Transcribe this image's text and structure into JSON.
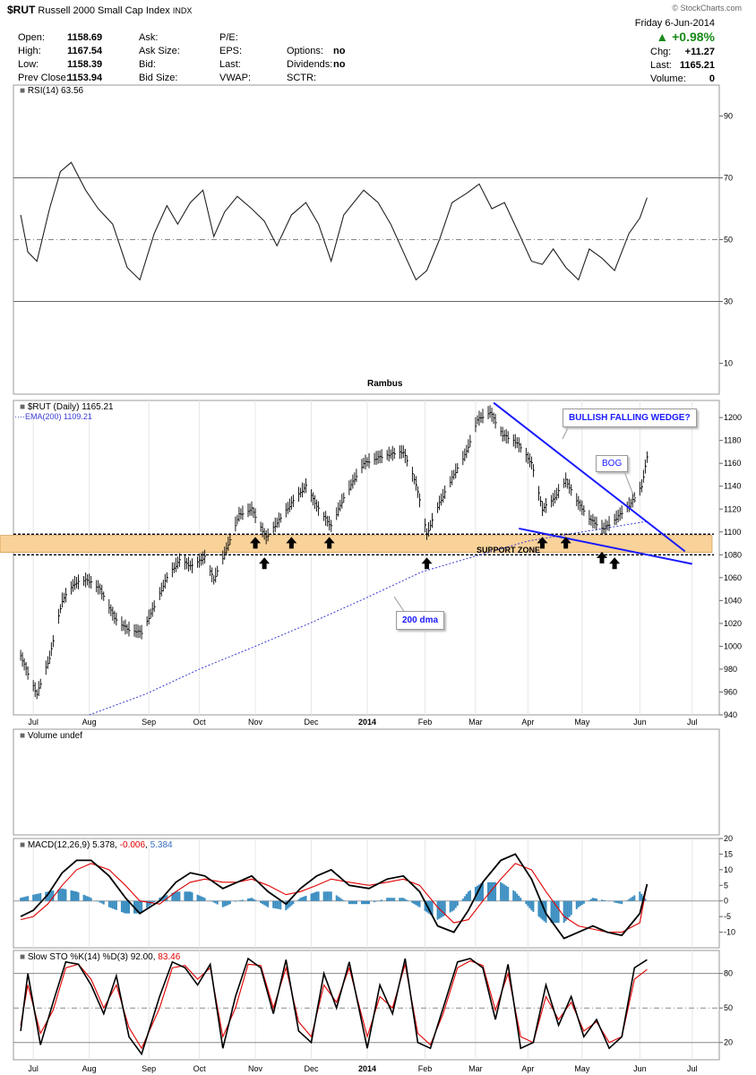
{
  "header": {
    "symbol": "$RUT",
    "name": "Russell 2000 Small Cap Index",
    "exchange": "INDX",
    "watermark": "© StockCharts.com",
    "date": "Friday  6-Jun-2014",
    "change_pct": "+0.98%",
    "stats_left": [
      {
        "label": "Open:",
        "value": "1158.69"
      },
      {
        "label": "High:",
        "value": "1167.54"
      },
      {
        "label": "Low:",
        "value": "1158.39"
      },
      {
        "label": "Prev Close:",
        "value": "1153.94"
      }
    ],
    "stats_mid": [
      "Ask:",
      "Ask Size:",
      "Bid:",
      "Bid Size:"
    ],
    "stats_mid2": [
      "P/E:",
      "EPS:",
      "Last:",
      "VWAP:"
    ],
    "stats_mid3": [
      {
        "label": "",
        "value": ""
      },
      {
        "label": "Options:",
        "value": "no"
      },
      {
        "label": "Dividends:",
        "value": "no"
      },
      {
        "label": "SCTR:",
        "value": ""
      }
    ],
    "stats_right": [
      {
        "label": "Chg:",
        "value": "+11.27"
      },
      {
        "label": "Last:",
        "value": "1165.21"
      },
      {
        "label": "Volume:",
        "value": "0"
      }
    ]
  },
  "chart_data": [
    {
      "type": "line",
      "panel": "rsi",
      "title": "RSI(14) 63.56",
      "annotation": "Rambus",
      "ylim": [
        0,
        100
      ],
      "yticks": [
        10,
        30,
        50,
        70,
        90
      ],
      "overbought": 70,
      "oversold": 30,
      "centerline": 50,
      "x": [
        "2013-06-24",
        "2013-06-28",
        "2013-07-03",
        "2013-07-10",
        "2013-07-16",
        "2013-07-22",
        "2013-07-30",
        "2013-08-06",
        "2013-08-14",
        "2013-08-22",
        "2013-08-29",
        "2013-09-06",
        "2013-09-13",
        "2013-09-19",
        "2013-09-26",
        "2013-10-03",
        "2013-10-09",
        "2013-10-15",
        "2013-10-22",
        "2013-10-30",
        "2013-11-06",
        "2013-11-13",
        "2013-11-21",
        "2013-11-29",
        "2013-12-06",
        "2013-12-13",
        "2013-12-20",
        "2013-12-31",
        "2014-01-08",
        "2014-01-15",
        "2014-01-22",
        "2014-01-29",
        "2014-02-04",
        "2014-02-11",
        "2014-02-18",
        "2014-02-26",
        "2014-03-05",
        "2014-03-12",
        "2014-03-19",
        "2014-03-27",
        "2014-04-03",
        "2014-04-09",
        "2014-04-15",
        "2014-04-22",
        "2014-04-29",
        "2014-05-05",
        "2014-05-12",
        "2014-05-19",
        "2014-05-27",
        "2014-06-02",
        "2014-06-06"
      ],
      "values": [
        58,
        46,
        43,
        60,
        72,
        75,
        66,
        60,
        55,
        41,
        37,
        52,
        61,
        55,
        62,
        66,
        51,
        59,
        64,
        60,
        56,
        48,
        58,
        62,
        55,
        43,
        58,
        66,
        62,
        55,
        46,
        37,
        40,
        50,
        62,
        65,
        68,
        60,
        62,
        52,
        43,
        42,
        47,
        41,
        37,
        47,
        44,
        40,
        52,
        57,
        63.56
      ]
    },
    {
      "type": "bar",
      "panel": "price",
      "title": "$RUT (Daily) 1165.21",
      "legend": [
        {
          "name": "EMA(200) 1109.21",
          "color": "#3a3ad6"
        }
      ],
      "ylim": [
        940,
        1215
      ],
      "yticks": [
        940,
        960,
        980,
        1000,
        1020,
        1040,
        1060,
        1080,
        1100,
        1120,
        1140,
        1160,
        1180,
        1200
      ],
      "x_tick_labels": [
        "Jul",
        "Aug",
        "Sep",
        "Oct",
        "Nov",
        "Dec",
        "2014",
        "Feb",
        "Mar",
        "Apr",
        "May",
        "Jun",
        "Jul"
      ],
      "x_tick_dates": [
        "2013-07-01",
        "2013-08-01",
        "2013-09-03",
        "2013-10-01",
        "2013-11-01",
        "2013-12-02",
        "2014-01-02",
        "2014-02-03",
        "2014-03-03",
        "2014-04-01",
        "2014-05-01",
        "2014-06-02",
        "2014-07-01"
      ],
      "close": {
        "x": [
          "2013-06-24",
          "2013-06-27",
          "2013-07-03",
          "2013-07-10",
          "2013-07-17",
          "2013-07-24",
          "2013-07-31",
          "2013-08-07",
          "2013-08-15",
          "2013-08-22",
          "2013-08-30",
          "2013-09-06",
          "2013-09-13",
          "2013-09-20",
          "2013-09-27",
          "2013-10-04",
          "2013-10-09",
          "2013-10-16",
          "2013-10-23",
          "2013-10-30",
          "2013-11-07",
          "2013-11-14",
          "2013-11-21",
          "2013-11-29",
          "2013-12-06",
          "2013-12-13",
          "2013-12-20",
          "2013-12-31",
          "2014-01-08",
          "2014-01-15",
          "2014-01-22",
          "2014-01-29",
          "2014-02-04",
          "2014-02-11",
          "2014-02-19",
          "2014-02-26",
          "2014-03-04",
          "2014-03-11",
          "2014-03-18",
          "2014-03-26",
          "2014-04-03",
          "2014-04-09",
          "2014-04-15",
          "2014-04-22",
          "2014-04-29",
          "2014-05-06",
          "2014-05-13",
          "2014-05-20",
          "2014-05-28",
          "2014-06-03",
          "2014-06-06"
        ],
        "values": [
          992,
          980,
          958,
          990,
          1040,
          1055,
          1058,
          1050,
          1025,
          1015,
          1012,
          1035,
          1060,
          1075,
          1070,
          1078,
          1058,
          1085,
          1115,
          1120,
          1095,
          1110,
          1125,
          1140,
          1120,
          1105,
          1130,
          1160,
          1165,
          1168,
          1170,
          1142,
          1098,
          1125,
          1150,
          1170,
          1198,
          1205,
          1185,
          1178,
          1160,
          1120,
          1128,
          1145,
          1125,
          1110,
          1103,
          1112,
          1125,
          1140,
          1165.21
        ]
      },
      "ema200": {
        "x": [
          "2013-08-01",
          "2013-09-01",
          "2013-10-01",
          "2013-11-01",
          "2013-12-01",
          "2014-01-01",
          "2014-02-01",
          "2014-03-01",
          "2014-04-01",
          "2014-05-01",
          "2014-06-06"
        ],
        "values": [
          940,
          958,
          980,
          1000,
          1020,
          1042,
          1065,
          1078,
          1092,
          1100,
          1109.21
        ]
      },
      "zones": [
        {
          "label": "SUPPORT ZONE",
          "from": 1082,
          "to": 1097,
          "color": "#f9d29a"
        }
      ],
      "support_lines": [
        1080,
        1098
      ],
      "wedge_upper": {
        "x": [
          "2014-03-13",
          "2014-06-27"
        ],
        "y": [
          1213,
          1083
        ]
      },
      "wedge_lower": {
        "x": [
          "2014-03-27",
          "2014-07-01"
        ],
        "y": [
          1103,
          1072
        ]
      },
      "arrow_dates": [
        "2013-11-01",
        "2013-11-06",
        "2013-11-21",
        "2013-12-12",
        "2014-02-04",
        "2014-04-09",
        "2014-04-22",
        "2014-05-12",
        "2014-05-19"
      ],
      "callouts": [
        {
          "text": "BULLISH FALLING WEDGE?",
          "color": "#1a1aff"
        },
        {
          "text": "BOG",
          "color": "#1a1aff"
        },
        {
          "text": "200 dma",
          "color": "#1a1aff"
        }
      ]
    },
    {
      "type": "bar",
      "panel": "volume",
      "title": "Volume undef"
    },
    {
      "type": "line",
      "panel": "macd",
      "title_label": "MACD(12,26,9)",
      "title_values": [
        "5.378",
        "-0.006",
        "5.384"
      ],
      "ylim": [
        -15,
        20
      ],
      "yticks": [
        -10,
        -5,
        0,
        5,
        10,
        15,
        20
      ],
      "x": [
        "2013-06-24",
        "2013-07-01",
        "2013-07-09",
        "2013-07-17",
        "2013-07-25",
        "2013-08-02",
        "2013-08-12",
        "2013-08-21",
        "2013-08-29",
        "2013-09-09",
        "2013-09-18",
        "2013-09-26",
        "2013-10-04",
        "2013-10-14",
        "2013-10-22",
        "2013-10-30",
        "2013-11-08",
        "2013-11-18",
        "2013-11-26",
        "2013-12-05",
        "2013-12-13",
        "2013-12-23",
        "2014-01-03",
        "2014-01-13",
        "2014-01-22",
        "2014-01-31",
        "2014-02-10",
        "2014-02-19",
        "2014-02-27",
        "2014-03-07",
        "2014-03-17",
        "2014-03-25",
        "2014-04-03",
        "2014-04-11",
        "2014-04-21",
        "2014-04-29",
        "2014-05-07",
        "2014-05-15",
        "2014-05-23",
        "2014-06-02",
        "2014-06-06"
      ],
      "series": [
        {
          "name": "MACD",
          "color": "#000000",
          "values": [
            -5,
            -3,
            2,
            9,
            13,
            13,
            8,
            1,
            -4,
            0,
            6,
            9,
            8,
            4,
            6,
            8,
            3,
            -1,
            4,
            8,
            10,
            5,
            4,
            7,
            8,
            3,
            -8,
            -10,
            -3,
            6,
            13,
            15,
            7,
            -4,
            -12,
            -10,
            -8,
            -10,
            -11,
            -4,
            5.378
          ]
        },
        {
          "name": "Signal",
          "color": "#e00000",
          "values": [
            -6,
            -5,
            -1,
            5,
            10,
            12,
            10,
            5,
            0,
            -1,
            3,
            6,
            7,
            6,
            6,
            7,
            5,
            2,
            3,
            5,
            7,
            6,
            5,
            6,
            7,
            5,
            -2,
            -7,
            -6,
            0,
            7,
            12,
            10,
            3,
            -5,
            -8,
            -9,
            -10,
            -10,
            -7,
            5.384
          ]
        },
        {
          "name": "Histogram",
          "color": "#3a8dc0",
          "values": [
            1,
            2,
            3,
            4,
            3,
            1,
            -2,
            -4,
            -4,
            1,
            3,
            3,
            1,
            -2,
            0,
            1,
            -2,
            -3,
            1,
            3,
            3,
            -1,
            -1,
            1,
            1,
            -2,
            -6,
            -3,
            3,
            6,
            6,
            3,
            -3,
            -7,
            -7,
            -2,
            1,
            0,
            -1,
            3,
            -0.006
          ]
        }
      ]
    },
    {
      "type": "line",
      "panel": "stochastic",
      "title_label": "Slow STO %K(14) %D(3)",
      "title_values": [
        "92.00",
        "83.46"
      ],
      "ylim": [
        5,
        100
      ],
      "yticks": [
        20,
        50,
        80
      ],
      "x": [
        "2013-06-24",
        "2013-06-28",
        "2013-07-05",
        "2013-07-12",
        "2013-07-19",
        "2013-07-26",
        "2013-08-02",
        "2013-08-09",
        "2013-08-16",
        "2013-08-23",
        "2013-08-30",
        "2013-09-09",
        "2013-09-16",
        "2013-09-23",
        "2013-09-30",
        "2013-10-07",
        "2013-10-14",
        "2013-10-21",
        "2013-10-28",
        "2013-11-04",
        "2013-11-11",
        "2013-11-18",
        "2013-11-25",
        "2013-12-02",
        "2013-12-09",
        "2013-12-16",
        "2013-12-23",
        "2014-01-02",
        "2014-01-09",
        "2014-01-16",
        "2014-01-23",
        "2014-01-30",
        "2014-02-06",
        "2014-02-13",
        "2014-02-21",
        "2014-02-28",
        "2014-03-07",
        "2014-03-14",
        "2014-03-21",
        "2014-03-28",
        "2014-04-04",
        "2014-04-11",
        "2014-04-18",
        "2014-04-25",
        "2014-05-02",
        "2014-05-09",
        "2014-05-16",
        "2014-05-23",
        "2014-05-30",
        "2014-06-06"
      ],
      "series": [
        {
          "name": "%K",
          "color": "#000000",
          "values": [
            30,
            80,
            18,
            55,
            90,
            88,
            70,
            45,
            78,
            25,
            10,
            60,
            90,
            85,
            70,
            88,
            15,
            60,
            93,
            85,
            45,
            92,
            30,
            20,
            80,
            50,
            90,
            15,
            70,
            45,
            93,
            20,
            15,
            50,
            90,
            93,
            85,
            40,
            88,
            15,
            20,
            70,
            35,
            60,
            25,
            40,
            15,
            25,
            85,
            92
          ]
        },
        {
          "name": "%D",
          "color": "#e00000",
          "values": [
            35,
            70,
            28,
            48,
            85,
            88,
            75,
            50,
            70,
            33,
            15,
            50,
            85,
            87,
            75,
            85,
            25,
            50,
            88,
            87,
            50,
            85,
            38,
            25,
            70,
            55,
            85,
            25,
            60,
            50,
            88,
            28,
            18,
            45,
            85,
            91,
            87,
            48,
            80,
            25,
            20,
            60,
            40,
            55,
            30,
            38,
            20,
            25,
            75,
            83.46
          ]
        }
      ]
    }
  ]
}
